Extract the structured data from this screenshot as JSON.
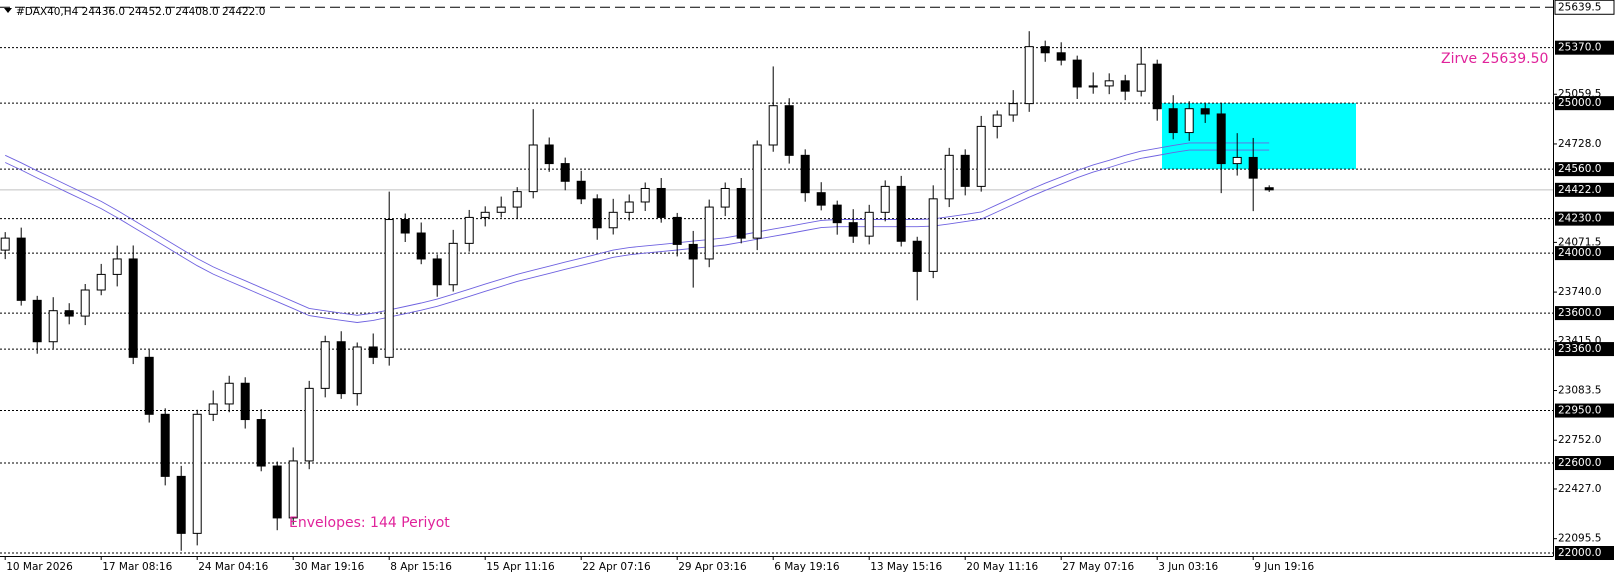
{
  "chart_data": {
    "type": "candlestick",
    "title": "#DAX40,H4  24436.0 24452.0 24408.0 24422.0",
    "annotations": [
      {
        "text": "Zirve 25639.50",
        "color": "#e0239b"
      },
      {
        "text": "Envelopes: 144 Periyot",
        "color": "#e0239b"
      }
    ],
    "categories": [
      "10 Mar 2026",
      null,
      null,
      null,
      null,
      null,
      "17 Mar 08:16",
      null,
      null,
      null,
      null,
      null,
      "24 Mar 04:16",
      null,
      null,
      null,
      null,
      null,
      "30 Mar 19:16",
      null,
      null,
      null,
      null,
      null,
      "8 Apr 15:16",
      null,
      null,
      null,
      null,
      null,
      "15 Apr 11:16",
      null,
      null,
      null,
      null,
      null,
      "22 Apr 07:16",
      null,
      null,
      null,
      null,
      null,
      "29 Apr 03:16",
      null,
      null,
      null,
      null,
      null,
      "6 May 19:16",
      null,
      null,
      null,
      null,
      null,
      "13 May 15:16",
      null,
      null,
      null,
      null,
      null,
      "20 May 11:16",
      null,
      null,
      null,
      null,
      null,
      "27 May 07:16",
      null,
      null,
      null,
      null,
      null,
      "3 Jun 03:16",
      null,
      null,
      null,
      null,
      null,
      "9 Jun 19:16",
      null
    ],
    "open": [
      24020,
      24100,
      23685,
      23409,
      23616,
      23580,
      23754,
      23858,
      23961,
      23305,
      22925,
      22511,
      22131,
      22925,
      22994,
      23132,
      22890,
      22580,
      22234,
      22614,
      23098,
      23409,
      23063,
      23374,
      23305,
      24224,
      24134,
      23961,
      23789,
      24065,
      24238,
      24272,
      24307,
      24410,
      24721,
      24597,
      24479,
      24362,
      24169,
      24272,
      24341,
      24431,
      24238,
      24058,
      23961,
      24307,
      24431,
      24100,
      24721,
      24983,
      24652,
      24403,
      24320,
      24203,
      24113,
      24272,
      24445,
      24079,
      23878,
      24362,
      24652,
      24445,
      24845,
      24921,
      24997,
      25377,
      25336,
      25287,
      25108,
      25115,
      25149,
      25080,
      25260,
      24963,
      24804,
      24963,
      24928,
      24597,
      24638,
      24436
    ],
    "high": [
      24140,
      24170,
      23715,
      23706,
      23666,
      23794,
      23928,
      24050,
      24051,
      23355,
      22965,
      22581,
      22955,
      23084,
      23182,
      23172,
      22960,
      22610,
      22704,
      23148,
      23449,
      23479,
      23404,
      23464,
      24410,
      24264,
      24204,
      23991,
      24155,
      24288,
      24312,
      24377,
      24440,
      24960,
      24771,
      24637,
      24549,
      24392,
      24362,
      24391,
      24471,
      24501,
      24268,
      24148,
      24357,
      24471,
      24501,
      24751,
      25245,
      25033,
      24692,
      24473,
      24350,
      24293,
      24322,
      24485,
      24515,
      24109,
      24452,
      24702,
      24692,
      24915,
      24951,
      25087,
      25480,
      25417,
      25406,
      25317,
      25205,
      25199,
      25189,
      25370,
      25290,
      25053,
      25013,
      25003,
      24998,
      24800,
      24768,
      24452
    ],
    "low": [
      23960,
      23650,
      23329,
      23364,
      23525,
      23520,
      23719,
      23778,
      23260,
      22870,
      22451,
      22015,
      22051,
      22880,
      22939,
      22830,
      22545,
      22152,
      22189,
      22559,
      23038,
      23028,
      22983,
      23260,
      23250,
      24074,
      23926,
      23709,
      23744,
      24010,
      24178,
      24237,
      24227,
      24365,
      24542,
      24419,
      24327,
      24089,
      24124,
      24217,
      24281,
      24203,
      23978,
      23770,
      23906,
      24247,
      24065,
      24020,
      24676,
      24597,
      24343,
      24285,
      24123,
      24068,
      24058,
      24212,
      24044,
      23685,
      23833,
      24307,
      24385,
      24410,
      24765,
      24876,
      24942,
      25276,
      25252,
      25028,
      25063,
      25060,
      25020,
      25045,
      24883,
      24759,
      24749,
      24868,
      24400,
      24517,
      24280,
      24408
    ],
    "close": [
      24100,
      23685,
      23409,
      23616,
      23580,
      23754,
      23858,
      23961,
      23305,
      22925,
      22511,
      22131,
      22925,
      22994,
      23132,
      22890,
      22580,
      22234,
      22614,
      23098,
      23409,
      23063,
      23374,
      23305,
      24224,
      24134,
      23961,
      23789,
      24065,
      24238,
      24272,
      24307,
      24410,
      24721,
      24597,
      24479,
      24362,
      24169,
      24272,
      24341,
      24431,
      24238,
      24058,
      23961,
      24307,
      24431,
      24100,
      24721,
      24983,
      24652,
      24403,
      24320,
      24203,
      24113,
      24272,
      24445,
      24079,
      23878,
      24362,
      24652,
      24445,
      24845,
      24921,
      24997,
      25377,
      25336,
      25287,
      25108,
      25115,
      25149,
      25080,
      25260,
      24963,
      24804,
      24963,
      24928,
      24597,
      24638,
      24500,
      24422
    ],
    "up_color": "#ffffff",
    "down_color": "#000000",
    "envelopes": {
      "color": "#6f62e0",
      "upper": [
        24652,
        24602,
        24549,
        24498,
        24447,
        24396,
        24345,
        24285,
        24221,
        24157,
        24093,
        24028,
        23964,
        23908,
        23861,
        23816,
        23769,
        23724,
        23678,
        23631,
        23615,
        23600,
        23585,
        23599,
        23621,
        23644,
        23667,
        23693,
        23726,
        23759,
        23793,
        23826,
        23859,
        23886,
        23913,
        23940,
        23966,
        23993,
        24020,
        24037,
        24048,
        24058,
        24069,
        24080,
        24090,
        24102,
        24121,
        24141,
        24160,
        24179,
        24199,
        24218,
        24224,
        24224,
        24224,
        24224,
        24224,
        24224,
        24228,
        24243,
        24258,
        24274,
        24323,
        24372,
        24421,
        24466,
        24508,
        24551,
        24588,
        24619,
        24652,
        24680,
        24699,
        24718,
        24735,
        24735,
        24735,
        24735,
        24735,
        24735
      ],
      "lower": [
        24604,
        24554,
        24501,
        24450,
        24399,
        24348,
        24297,
        24237,
        24173,
        24109,
        24045,
        23980,
        23916,
        23860,
        23813,
        23768,
        23721,
        23676,
        23630,
        23583,
        23567,
        23552,
        23537,
        23551,
        23573,
        23596,
        23619,
        23645,
        23678,
        23711,
        23745,
        23778,
        23811,
        23838,
        23865,
        23892,
        23918,
        23945,
        23972,
        23989,
        24000,
        24010,
        24021,
        24032,
        24042,
        24054,
        24073,
        24093,
        24112,
        24131,
        24151,
        24170,
        24176,
        24176,
        24176,
        24176,
        24176,
        24176,
        24180,
        24195,
        24210,
        24226,
        24275,
        24324,
        24373,
        24418,
        24460,
        24503,
        24540,
        24571,
        24604,
        24632,
        24651,
        24670,
        24687,
        24687,
        24687,
        24687,
        24687,
        24687
      ]
    },
    "zone": {
      "low": 24560,
      "high": 25000,
      "color": "#00ffff"
    },
    "ylim": [
      21980,
      25688
    ],
    "yticks": [
      25059.5,
      {
        "value": 24728,
        "label": "24728.0"
      },
      24071.5,
      {
        "value": 23740,
        "label": "23740.0"
      },
      {
        "value": 23415,
        "label": "23415.0"
      },
      23083.5,
      {
        "value": 22752,
        "label": "22752.0"
      },
      {
        "value": 22427,
        "label": "22427.0"
      },
      22095.5
    ],
    "high_line": 25639.5,
    "levels": [
      {
        "value": 25370,
        "label": "25370.0"
      },
      {
        "value": 25000,
        "label": "25000.0"
      },
      {
        "value": 24560,
        "label": "24560.0"
      },
      {
        "value": 24230,
        "label": "24230.0"
      },
      {
        "value": 24000,
        "label": "24000.0"
      },
      {
        "value": 23600,
        "label": "23600.0"
      },
      {
        "value": 23360,
        "label": "23360.0"
      },
      {
        "value": 22950,
        "label": "22950.0"
      },
      {
        "value": 22600,
        "label": "22600.0"
      },
      {
        "value": 22000,
        "label": "22000.0"
      }
    ],
    "price_line": {
      "value": 24422,
      "label": "24422.0"
    }
  }
}
